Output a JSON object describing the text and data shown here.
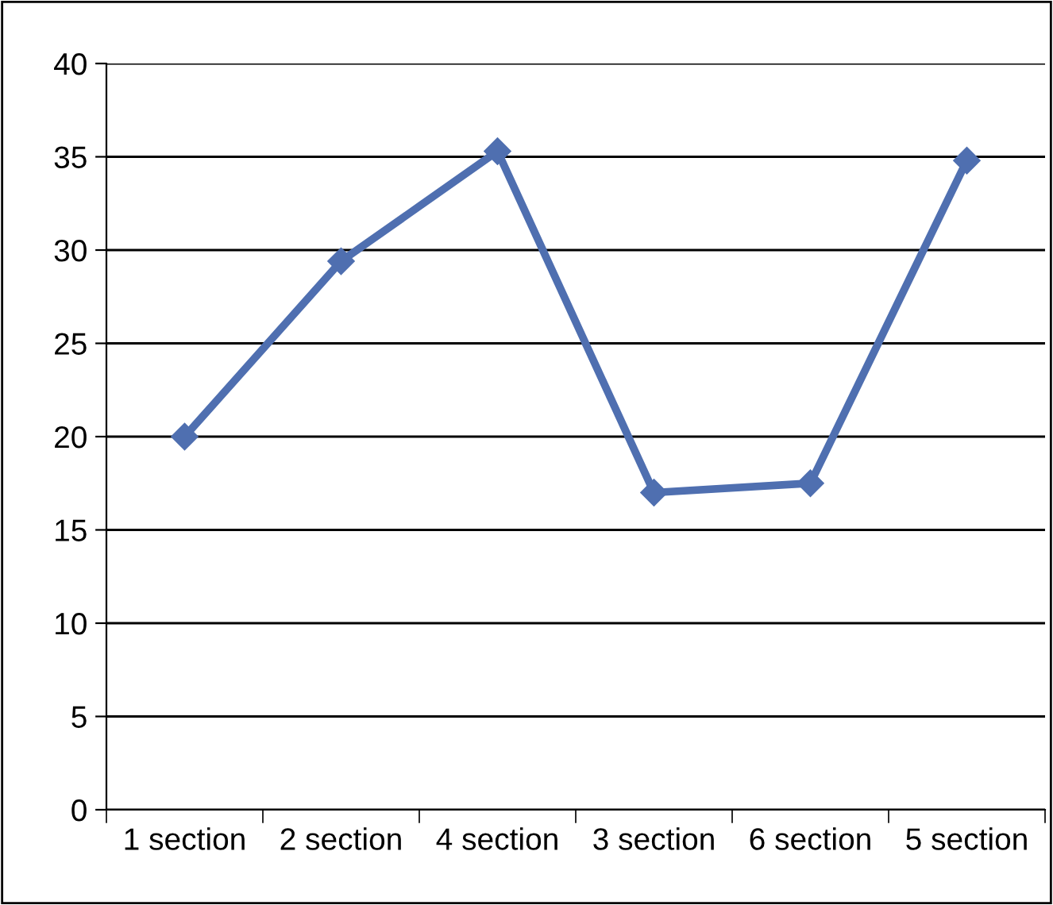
{
  "chart_data": {
    "type": "line",
    "categories": [
      "1 section",
      "2 section",
      "4 section",
      "3 section",
      "6 section",
      "5 section"
    ],
    "series": [
      {
        "color": "#4f6fb0",
        "values": [
          20.0,
          29.4,
          35.3,
          17.0,
          17.5,
          34.8
        ]
      }
    ],
    "ylim": [
      0,
      40
    ],
    "yticks": [
      0,
      5,
      10,
      15,
      20,
      25,
      30,
      35,
      40
    ],
    "grid": "y",
    "marker": "diamond",
    "line_style": "solid",
    "legend": false
  }
}
